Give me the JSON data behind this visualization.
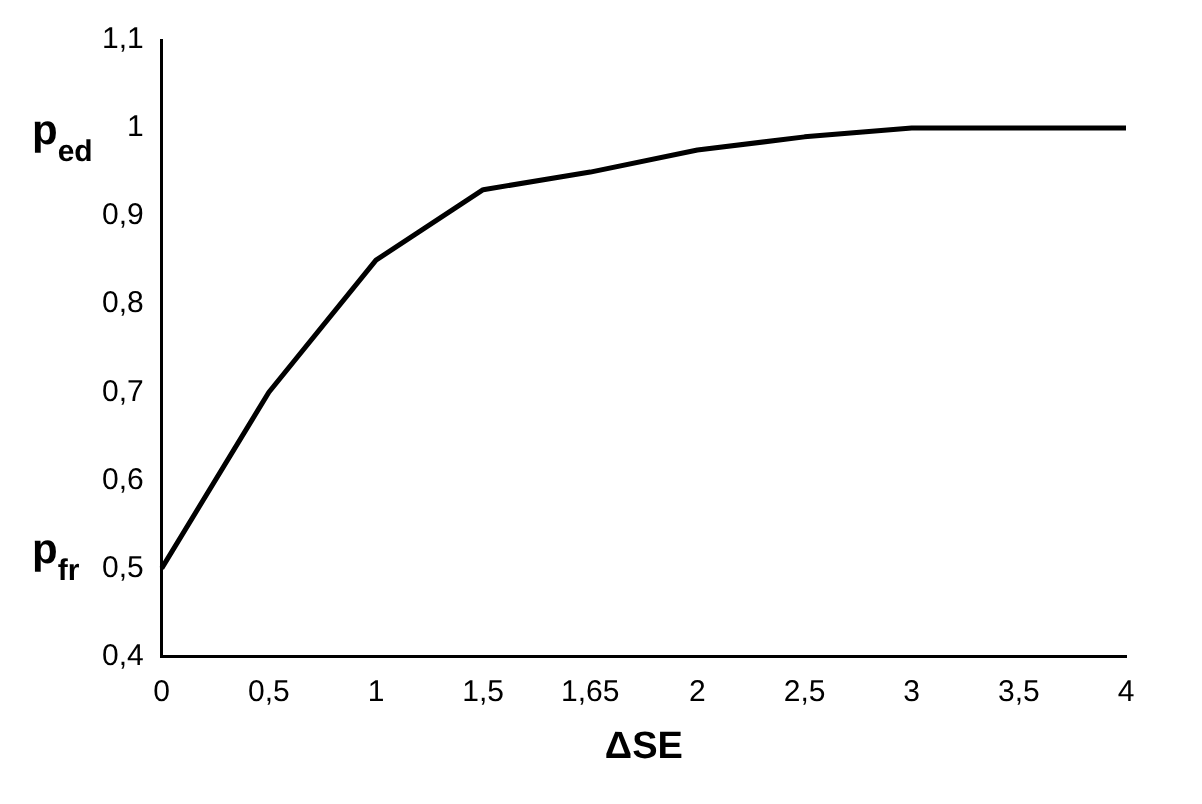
{
  "chart_data": {
    "type": "line",
    "xlabel": "ΔSE",
    "categories": [
      "0",
      "0,5",
      "1",
      "1,5",
      "1,65",
      "2",
      "2,5",
      "3",
      "3,5",
      "4"
    ],
    "series": [
      {
        "color": "#000000",
        "values": [
          0.5,
          0.7,
          0.85,
          0.93,
          0.95,
          0.975,
          0.99,
          1.0,
          1.0,
          1.0
        ]
      }
    ],
    "ylim": [
      0.4,
      1.1
    ],
    "yticks": [
      {
        "value": 0.4,
        "label": "0,4"
      },
      {
        "value": 0.5,
        "label": "0,5"
      },
      {
        "value": 0.6,
        "label": "0,6"
      },
      {
        "value": 0.7,
        "label": "0,7"
      },
      {
        "value": 0.8,
        "label": "0,8"
      },
      {
        "value": 0.9,
        "label": "0,9"
      },
      1,
      {
        "value": 1.1,
        "label": "1,1"
      }
    ],
    "annotations": [
      "p$_{ed}$",
      "p$_{fr}$"
    ],
    "grid": false,
    "legend": false,
    "marker": "none",
    "line_style": "solid"
  }
}
